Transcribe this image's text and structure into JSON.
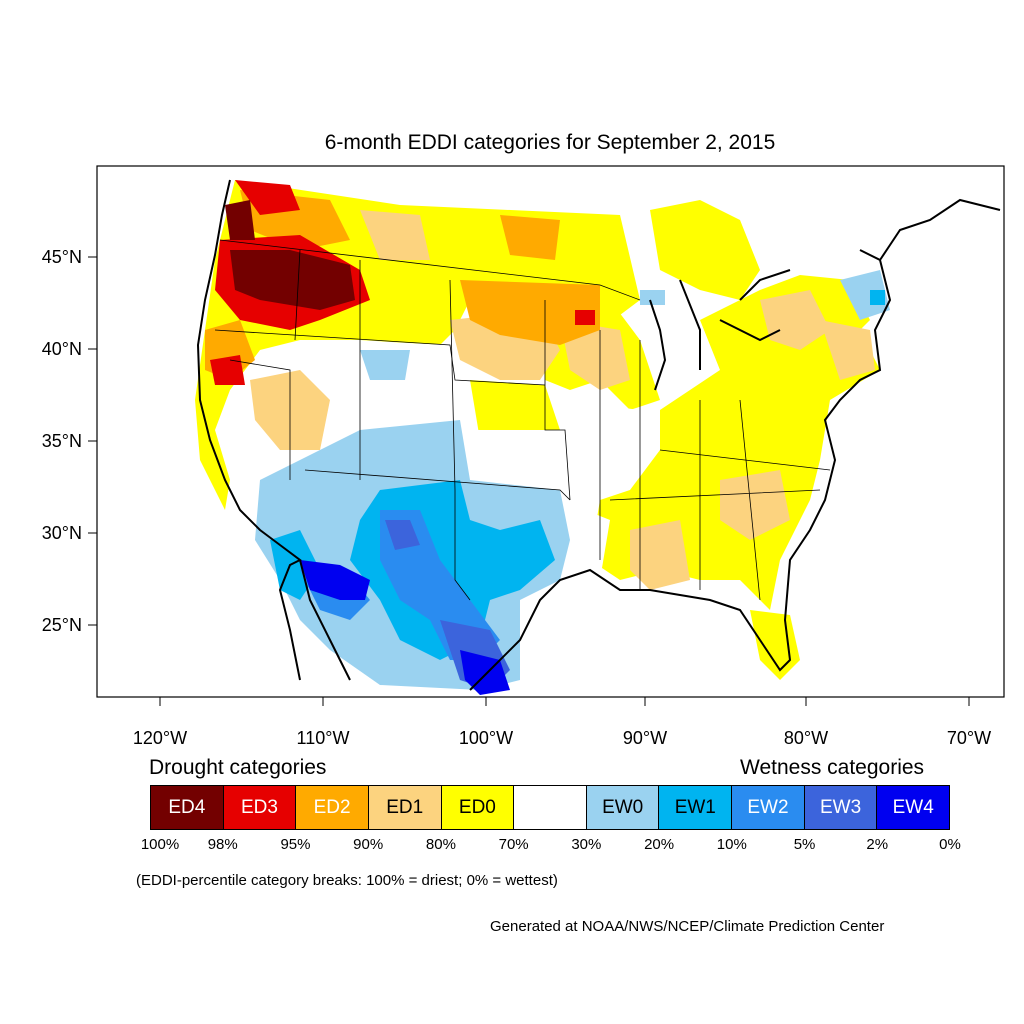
{
  "title": "6-month EDDI categories for September 2, 2015",
  "axes": {
    "lat_labels": [
      "45°N",
      "40°N",
      "35°N",
      "30°N",
      "25°N"
    ],
    "lon_labels": [
      "120°W",
      "110°W",
      "100°W",
      "90°W",
      "80°W",
      "70°W"
    ]
  },
  "legend": {
    "drought_heading": "Drought categories",
    "wetness_heading": "Wetness categories",
    "categories": [
      {
        "label": "ED4",
        "color": "#730000",
        "text_color": "#ffffff"
      },
      {
        "label": "ED3",
        "color": "#e60000",
        "text_color": "#ffffff"
      },
      {
        "label": "ED2",
        "color": "#ffaa00",
        "text_color": "#ffffff"
      },
      {
        "label": "ED1",
        "color": "#fcd37f",
        "text_color": "#000000"
      },
      {
        "label": "ED0",
        "color": "#ffff00",
        "text_color": "#000000"
      },
      {
        "label": "",
        "color": "#ffffff",
        "text_color": "#000000"
      },
      {
        "label": "EW0",
        "color": "#9ad2f0",
        "text_color": "#000000"
      },
      {
        "label": "EW1",
        "color": "#00b4f0",
        "text_color": "#000000"
      },
      {
        "label": "EW2",
        "color": "#2a8cf0",
        "text_color": "#ffffff"
      },
      {
        "label": "EW3",
        "color": "#3c64dc",
        "text_color": "#ffffff"
      },
      {
        "label": "EW4",
        "color": "#0000f0",
        "text_color": "#ffffff"
      }
    ],
    "breaks": [
      "100%",
      "98%",
      "95%",
      "90%",
      "80%",
      "70%",
      "30%",
      "20%",
      "10%",
      "5%",
      "2%",
      "0%"
    ]
  },
  "note": "(EDDI-percentile category breaks: 100% = driest; 0% = wettest)",
  "credit": "Generated at NOAA/NWS/NCEP/Climate Prediction Center"
}
